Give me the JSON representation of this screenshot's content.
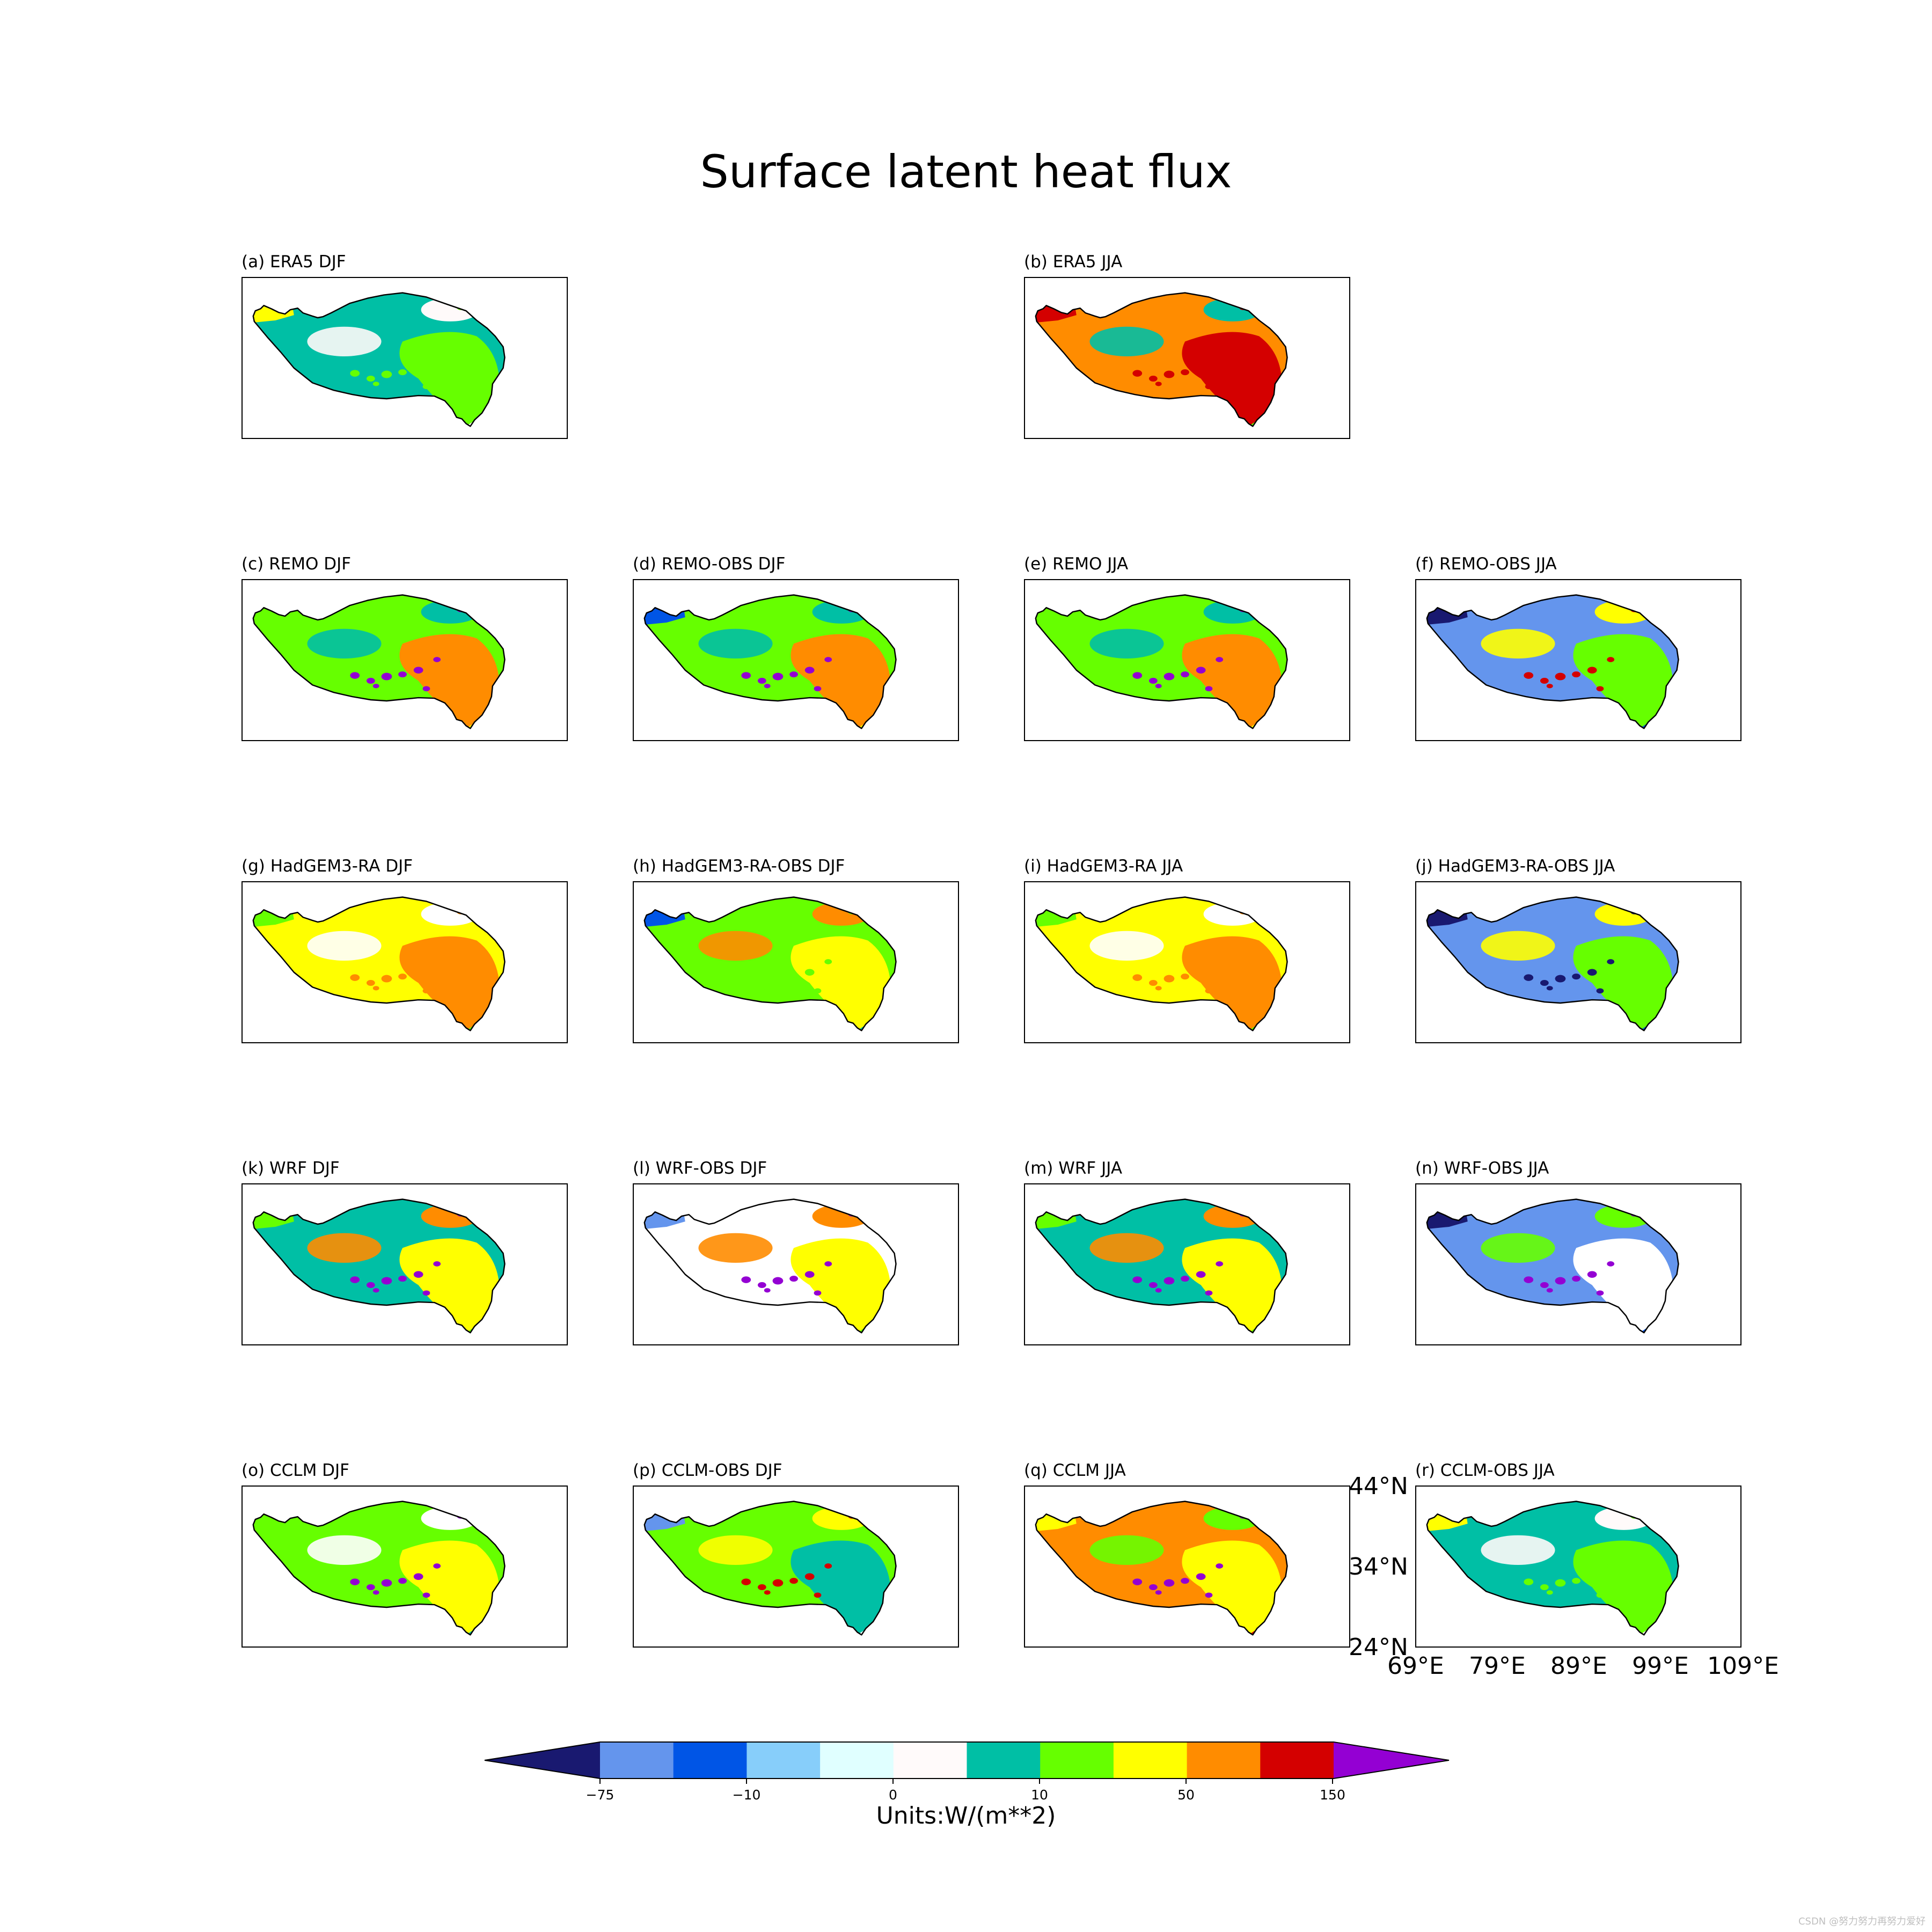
{
  "title": "Surface latent heat flux",
  "panels": [
    {
      "label": "(a) ERA5 DJF",
      "palette": [
        "#00bfa5",
        "#ffffff",
        "#66ff00",
        "#fffafa"
      ],
      "west": "#ffff00",
      "spots": "#66ff00"
    },
    {
      "label": "(b) ERA5 JJA",
      "palette": [
        "#ff8c00",
        "#66ff00",
        "#d40000",
        "#00bfa5"
      ],
      "west": "#d40000",
      "spots": "#d40000"
    },
    {
      "label": "(c) REMO DJF",
      "palette": [
        "#66ff00",
        "#ffff00",
        "#ff8c00",
        "#00bfa5"
      ],
      "west": "#66ff00",
      "spots": "#9400d3"
    },
    {
      "label": "(d) REMO-OBS DJF",
      "palette": [
        "#66ff00",
        "#ffff00",
        "#ff8c00",
        "#00bfa5"
      ],
      "west": "#0055e6",
      "spots": "#9400d3"
    },
    {
      "label": "(e) REMO JJA",
      "palette": [
        "#66ff00",
        "#ffff00",
        "#ff8c00",
        "#00bfa5"
      ],
      "west": "#66ff00",
      "spots": "#9400d3"
    },
    {
      "label": "(f) REMO-OBS JJA",
      "palette": [
        "#6495ed",
        "#0055e6",
        "#66ff00",
        "#ffff00"
      ],
      "west": "#191970",
      "spots": "#d40000"
    },
    {
      "label": "(g) HadGEM3-RA DJF",
      "palette": [
        "#ffff00",
        "#66ff00",
        "#ff8c00",
        "#ffffff"
      ],
      "west": "#66ff00",
      "spots": "#ff8c00"
    },
    {
      "label": "(h) HadGEM3-RA-OBS DJF",
      "palette": [
        "#66ff00",
        "#00bfa5",
        "#ffff00",
        "#ff8c00"
      ],
      "west": "#0055e6",
      "spots": "#66ff00"
    },
    {
      "label": "(i) HadGEM3-RA JJA",
      "palette": [
        "#ffff00",
        "#66ff00",
        "#ff8c00",
        "#ffffff"
      ],
      "west": "#66ff00",
      "spots": "#ff8c00"
    },
    {
      "label": "(j) HadGEM3-RA-OBS JJA",
      "palette": [
        "#6495ed",
        "#0055e6",
        "#66ff00",
        "#ffff00"
      ],
      "west": "#191970",
      "spots": "#191970"
    },
    {
      "label": "(k) WRF DJF",
      "palette": [
        "#00bfa5",
        "#66ff00",
        "#ffff00",
        "#ff8c00"
      ],
      "west": "#66ff00",
      "spots": "#9400d3"
    },
    {
      "label": "(l) WRF-OBS DJF",
      "palette": [
        "#ffffff",
        "#66ff00",
        "#ffff00",
        "#ff8c00"
      ],
      "west": "#6495ed",
      "spots": "#9400d3"
    },
    {
      "label": "(m) WRF JJA",
      "palette": [
        "#00bfa5",
        "#66ff00",
        "#ffff00",
        "#ff8c00"
      ],
      "west": "#66ff00",
      "spots": "#9400d3"
    },
    {
      "label": "(n) WRF-OBS JJA",
      "palette": [
        "#6495ed",
        "#0055e6",
        "#ffffff",
        "#66ff00"
      ],
      "west": "#191970",
      "spots": "#9400d3"
    },
    {
      "label": "(o) CCLM DJF",
      "palette": [
        "#66ff00",
        "#00bfa5",
        "#ffff00",
        "#ffffff"
      ],
      "west": "#66ff00",
      "spots": "#9400d3"
    },
    {
      "label": "(p) CCLM-OBS DJF",
      "palette": [
        "#66ff00",
        "#ffffff",
        "#00bfa5",
        "#ffff00"
      ],
      "west": "#6495ed",
      "spots": "#d40000"
    },
    {
      "label": "(q) CCLM JJA",
      "palette": [
        "#ff8c00",
        "#d40000",
        "#ffff00",
        "#66ff00"
      ],
      "west": "#ffff00",
      "spots": "#9400d3"
    },
    {
      "label": "(r) CCLM-OBS JJA",
      "palette": [
        "#00bfa5",
        "#ffffff",
        "#66ff00",
        "#fffafa"
      ],
      "west": "#ffff00",
      "spots": "#66ff00"
    }
  ],
  "axes": {
    "lat_labels": [
      "44°N",
      "34°N",
      "24°N"
    ],
    "lon_labels": [
      "69°E",
      "79°E",
      "89°E",
      "99°E",
      "109°E"
    ]
  },
  "colorbar": {
    "colors": [
      "#191970",
      "#6495ed",
      "#0055e6",
      "#87cefa",
      "#e0ffff",
      "#fffafa",
      "#00bfa5",
      "#66ff00",
      "#ffff00",
      "#ff8c00",
      "#d40000",
      "#9400d3"
    ],
    "tick_labels": [
      "−75",
      "−10",
      "0",
      "10",
      "50",
      "150"
    ],
    "units": "Units:W/(m**2)"
  },
  "watermark": "CSDN @努力努力再努力爱好"
}
